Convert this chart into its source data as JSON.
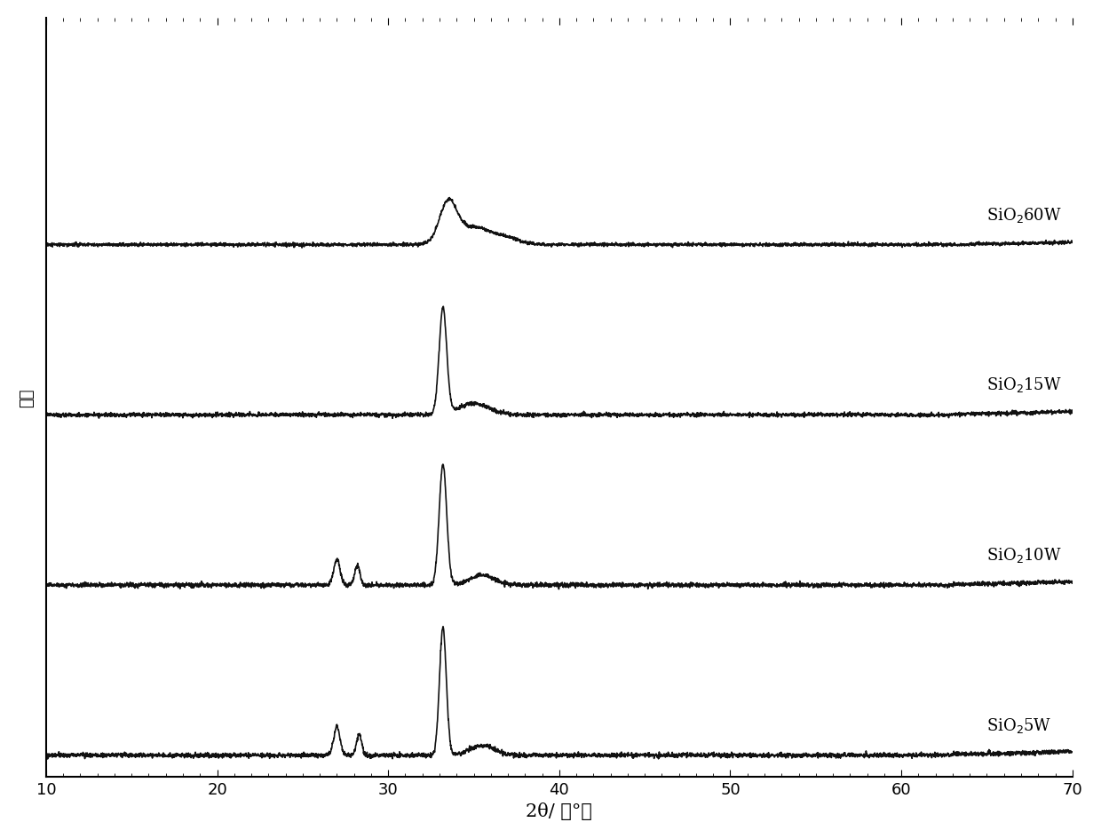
{
  "xlabel": "2θ/ （°）",
  "ylabel": "强度",
  "xlim": [
    10,
    70
  ],
  "xticks": [
    10,
    20,
    30,
    40,
    50,
    60,
    70
  ],
  "labels": [
    "SiO₂ 60W",
    "SiO₂ 15W",
    "SiO₂ 10W",
    "SiO₂ 5W"
  ],
  "offsets": [
    3.6,
    2.4,
    1.2,
    0.0
  ],
  "background_color": "#ffffff",
  "line_color": "#111111",
  "line_width": 1.2,
  "noise_amplitude": 0.008,
  "curve_base": 0.0,
  "xlabel_fontsize": 15,
  "ylabel_fontsize": 13,
  "tick_fontsize": 13,
  "label_fontsize": 13
}
